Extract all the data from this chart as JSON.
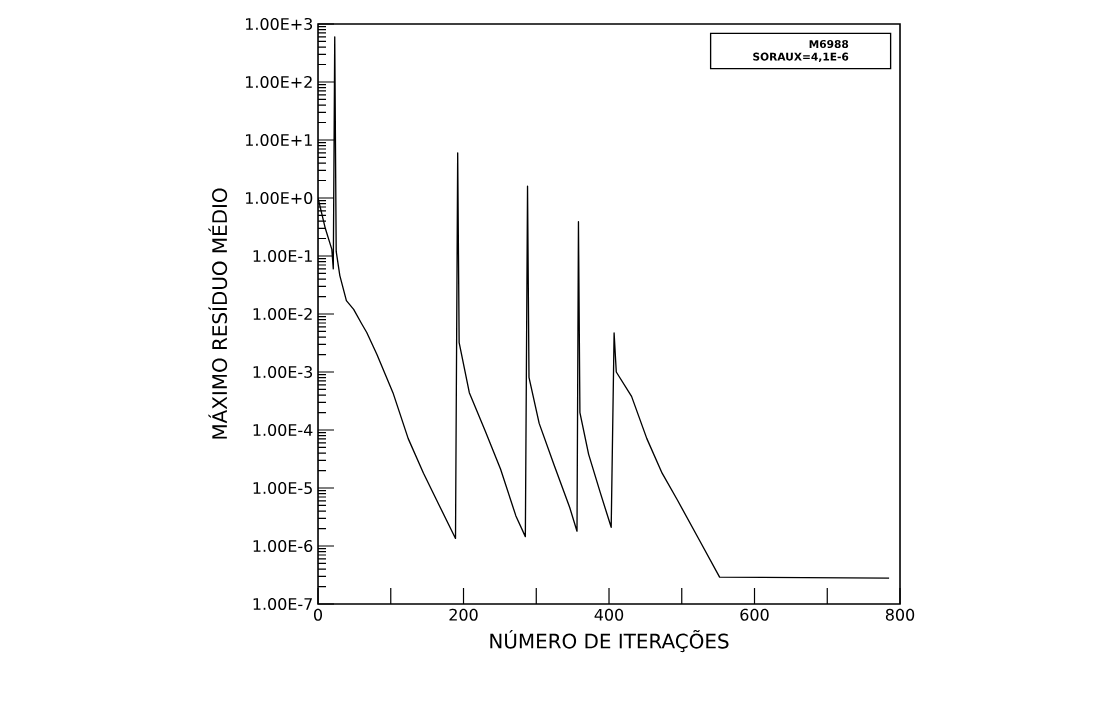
{
  "chart_data": {
    "type": "line",
    "xlabel": "NÚMERO DE ITERAÇÕES",
    "ylabel": "MÁXIMO RESÍDUO MÉDIO",
    "annotations": [
      "M6988",
      "SORAUX=4,1E-6"
    ],
    "log": "y",
    "marker": "none",
    "line_style": "solid",
    "xlim": [
      0,
      800
    ],
    "xticks": [
      0,
      {
        "value": 100,
        "label": null
      },
      200,
      {
        "value": 300,
        "label": null
      },
      400,
      {
        "value": 500,
        "label": null
      },
      600,
      {
        "value": 700,
        "label": null
      },
      800
    ],
    "ylim": [
      1e-07,
      1000
    ],
    "yticks": [
      {
        "value": 1000,
        "label": "1.00E+3"
      },
      {
        "value": 100,
        "label": "1.00E+2"
      },
      {
        "value": 10,
        "label": "1.00E+1"
      },
      {
        "value": 1,
        "label": "1.00E+0"
      },
      {
        "value": 0.1,
        "label": "1.00E-1"
      },
      {
        "value": 0.01,
        "label": "1.00E-2"
      },
      {
        "value": 0.001,
        "label": "1.00E-3"
      },
      {
        "value": 0.0001,
        "label": "1.00E-4"
      },
      {
        "value": 1e-05,
        "label": "1.00E-5"
      },
      {
        "value": 1e-06,
        "label": "1.00E-6"
      },
      {
        "value": 1e-07,
        "label": "1.00E-7"
      }
    ],
    "series": [
      {
        "color": "#000000",
        "x": [
          0,
          10,
          19,
          21,
          23,
          25,
          30,
          39,
          49,
          60,
          67,
          81,
          103,
          124,
          145,
          166,
          189,
          192,
          194,
          208,
          230,
          251,
          272,
          285,
          288,
          290,
          304,
          325,
          346,
          356,
          358,
          360,
          372,
          388,
          403,
          407,
          410,
          431,
          452,
          473,
          494,
          526,
          552,
          785
        ],
        "values": [
          1.0,
          0.3,
          0.13,
          0.06,
          600,
          0.12,
          0.046,
          0.017,
          0.012,
          0.0068,
          0.0048,
          0.002,
          0.00044,
          7.1e-05,
          1.8e-05,
          5.2e-06,
          1.35e-06,
          6.0,
          0.0032,
          0.00044,
          9.5e-05,
          2.1e-05,
          3.3e-06,
          1.45e-06,
          1.6,
          0.00081,
          0.00013,
          2.4e-05,
          4.6e-06,
          1.8e-06,
          0.39,
          0.0002,
          3.8e-05,
          8.3e-06,
          2.1e-06,
          0.0047,
          0.001,
          0.00038,
          7.1e-05,
          1.8e-05,
          6.2e-06,
          1.15e-06,
          2.9e-07,
          2.8e-07
        ]
      }
    ]
  }
}
